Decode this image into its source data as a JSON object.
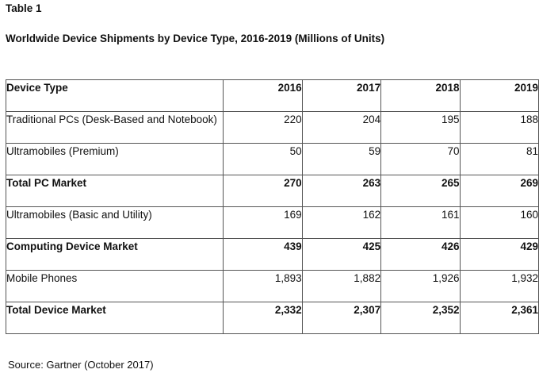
{
  "table_label": "Table 1",
  "title": "Worldwide Device Shipments by Device Type, 2016-2019 (Millions of Units)",
  "columns": [
    "Device Type",
    "2016",
    "2017",
    "2018",
    "2019"
  ],
  "rows": [
    {
      "name": "Traditional PCs (Desk-Based and Notebook)",
      "bold": false,
      "values": [
        "220",
        "204",
        "195",
        "188"
      ]
    },
    {
      "name": "Ultramobiles (Premium)",
      "bold": false,
      "values": [
        "50",
        "59",
        "70",
        "81"
      ]
    },
    {
      "name": "Total PC Market",
      "bold": true,
      "values": [
        "270",
        "263",
        "265",
        "269"
      ]
    },
    {
      "name": "Ultramobiles (Basic and Utility)",
      "bold": false,
      "values": [
        "169",
        "162",
        "161",
        "160"
      ]
    },
    {
      "name": "Computing Device Market",
      "bold": true,
      "values": [
        "439",
        "425",
        "426",
        "429"
      ]
    },
    {
      "name": "Mobile Phones",
      "bold": false,
      "values": [
        "1,893",
        "1,882",
        "1,926",
        "1,932"
      ]
    },
    {
      "name": "Total Device Market",
      "bold": true,
      "values": [
        "2,332",
        "2,307",
        "2,352",
        "2,361"
      ]
    }
  ],
  "source": "Source: Gartner (October 2017)"
}
